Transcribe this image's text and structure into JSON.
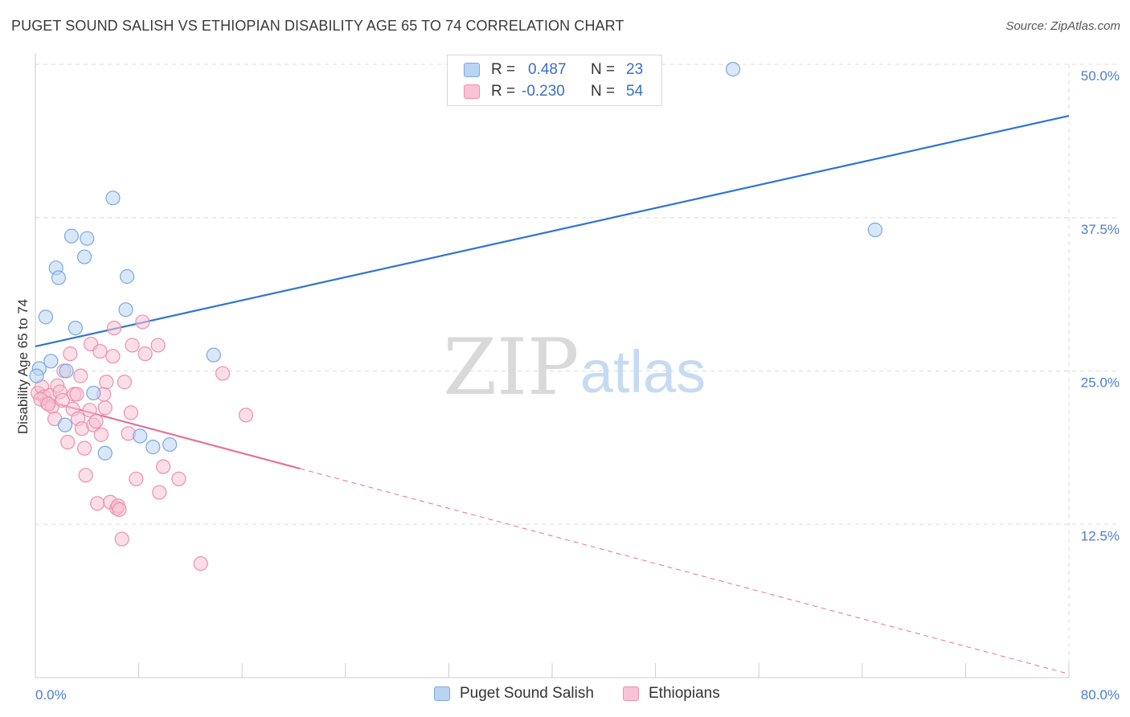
{
  "title": "PUGET SOUND SALISH VS ETHIOPIAN DISABILITY AGE 65 TO 74 CORRELATION CHART",
  "source": "Source: ZipAtlas.com",
  "watermark": {
    "zip": "ZIP",
    "atlas": "atlas"
  },
  "legend_top": {
    "rows": [
      {
        "r_label": "R =",
        "r_value": "0.487",
        "n_label": "N =",
        "n_value": "23"
      },
      {
        "r_label": "R =",
        "r_value": "-0.230",
        "n_label": "N =",
        "n_value": "54"
      }
    ]
  },
  "colors": {
    "blue_fill": "#b9d3f3",
    "blue_stroke": "#7aa8e0",
    "blue_line": "#2f74cf",
    "pink_fill": "#f8c3d4",
    "pink_stroke": "#ee8fae",
    "pink_line": "#e4719a",
    "grid": "#dddddd",
    "tick_text": "#4a7fc9"
  },
  "chart_data": {
    "type": "scatter",
    "title": "PUGET SOUND SALISH VS ETHIOPIAN DISABILITY AGE 65 TO 74 CORRELATION CHART",
    "xlabel": "",
    "ylabel": "Disability Age 65 to 74",
    "xlim": [
      0,
      80
    ],
    "ylim": [
      0,
      50
    ],
    "x_tick_labels": [
      "0.0%",
      "80.0%"
    ],
    "y_ticks": [
      12.5,
      25.0,
      37.5,
      50.0
    ],
    "y_tick_labels": [
      "12.5%",
      "25.0%",
      "37.5%",
      "50.0%"
    ],
    "x_minor_ticks": [
      0,
      8,
      16,
      24,
      32,
      40,
      48,
      56,
      64,
      72,
      80
    ],
    "grid": true,
    "legend_position": "bottom",
    "series": [
      {
        "name": "Puget Sound Salish",
        "r": 0.487,
        "n": 23,
        "trend": {
          "x0": 0,
          "y0": 27.0,
          "x1": 80,
          "y1": 45.8,
          "dashed_from": null
        },
        "points": [
          [
            0.3,
            25.2
          ],
          [
            0.8,
            29.4
          ],
          [
            1.2,
            25.8
          ],
          [
            1.6,
            33.4
          ],
          [
            1.8,
            32.6
          ],
          [
            2.3,
            20.6
          ],
          [
            2.4,
            25.0
          ],
          [
            2.8,
            36.0
          ],
          [
            3.1,
            28.5
          ],
          [
            3.8,
            34.3
          ],
          [
            4.0,
            35.8
          ],
          [
            4.5,
            23.2
          ],
          [
            5.4,
            18.3
          ],
          [
            6.0,
            39.1
          ],
          [
            7.1,
            32.7
          ],
          [
            7.0,
            30.0
          ],
          [
            8.1,
            19.7
          ],
          [
            9.1,
            18.8
          ],
          [
            10.4,
            19.0
          ],
          [
            13.8,
            26.3
          ],
          [
            54.0,
            49.6
          ],
          [
            65.0,
            36.5
          ],
          [
            0.1,
            24.6
          ]
        ]
      },
      {
        "name": "Ethiopians",
        "r": -0.23,
        "n": 54,
        "trend": {
          "x0": 0,
          "y0": 22.8,
          "x1": 80,
          "y1": 0.3,
          "dashed_from": 20.5
        },
        "points": [
          [
            0.2,
            23.2
          ],
          [
            0.5,
            23.7
          ],
          [
            0.7,
            22.9
          ],
          [
            0.9,
            22.4
          ],
          [
            1.1,
            23.0
          ],
          [
            1.3,
            22.1
          ],
          [
            1.5,
            21.1
          ],
          [
            1.7,
            23.8
          ],
          [
            1.9,
            23.3
          ],
          [
            2.1,
            22.6
          ],
          [
            2.2,
            25.0
          ],
          [
            2.5,
            19.2
          ],
          [
            2.7,
            26.4
          ],
          [
            2.9,
            21.9
          ],
          [
            3.0,
            23.1
          ],
          [
            3.3,
            21.1
          ],
          [
            3.5,
            24.6
          ],
          [
            3.6,
            20.3
          ],
          [
            3.8,
            18.7
          ],
          [
            3.9,
            16.5
          ],
          [
            4.2,
            21.8
          ],
          [
            4.3,
            27.2
          ],
          [
            4.5,
            20.6
          ],
          [
            4.7,
            20.9
          ],
          [
            4.8,
            14.2
          ],
          [
            5.0,
            26.6
          ],
          [
            5.1,
            19.8
          ],
          [
            5.3,
            23.1
          ],
          [
            5.4,
            22.0
          ],
          [
            5.5,
            24.1
          ],
          [
            5.8,
            14.3
          ],
          [
            6.0,
            26.2
          ],
          [
            6.1,
            28.5
          ],
          [
            6.3,
            13.8
          ],
          [
            6.4,
            14.0
          ],
          [
            6.7,
            11.3
          ],
          [
            6.9,
            24.1
          ],
          [
            7.2,
            19.9
          ],
          [
            7.4,
            21.6
          ],
          [
            7.5,
            27.1
          ],
          [
            7.8,
            16.2
          ],
          [
            8.3,
            29.0
          ],
          [
            8.5,
            26.4
          ],
          [
            9.5,
            27.1
          ],
          [
            9.6,
            15.1
          ],
          [
            9.9,
            17.2
          ],
          [
            11.1,
            16.2
          ],
          [
            12.8,
            9.3
          ],
          [
            14.5,
            24.8
          ],
          [
            16.3,
            21.4
          ],
          [
            0.4,
            22.7
          ],
          [
            1.0,
            22.3
          ],
          [
            6.5,
            13.7
          ],
          [
            3.2,
            23.1
          ]
        ]
      }
    ]
  },
  "legend_bottom": {
    "items": [
      {
        "label": "Puget Sound Salish"
      },
      {
        "label": "Ethiopians"
      }
    ]
  }
}
